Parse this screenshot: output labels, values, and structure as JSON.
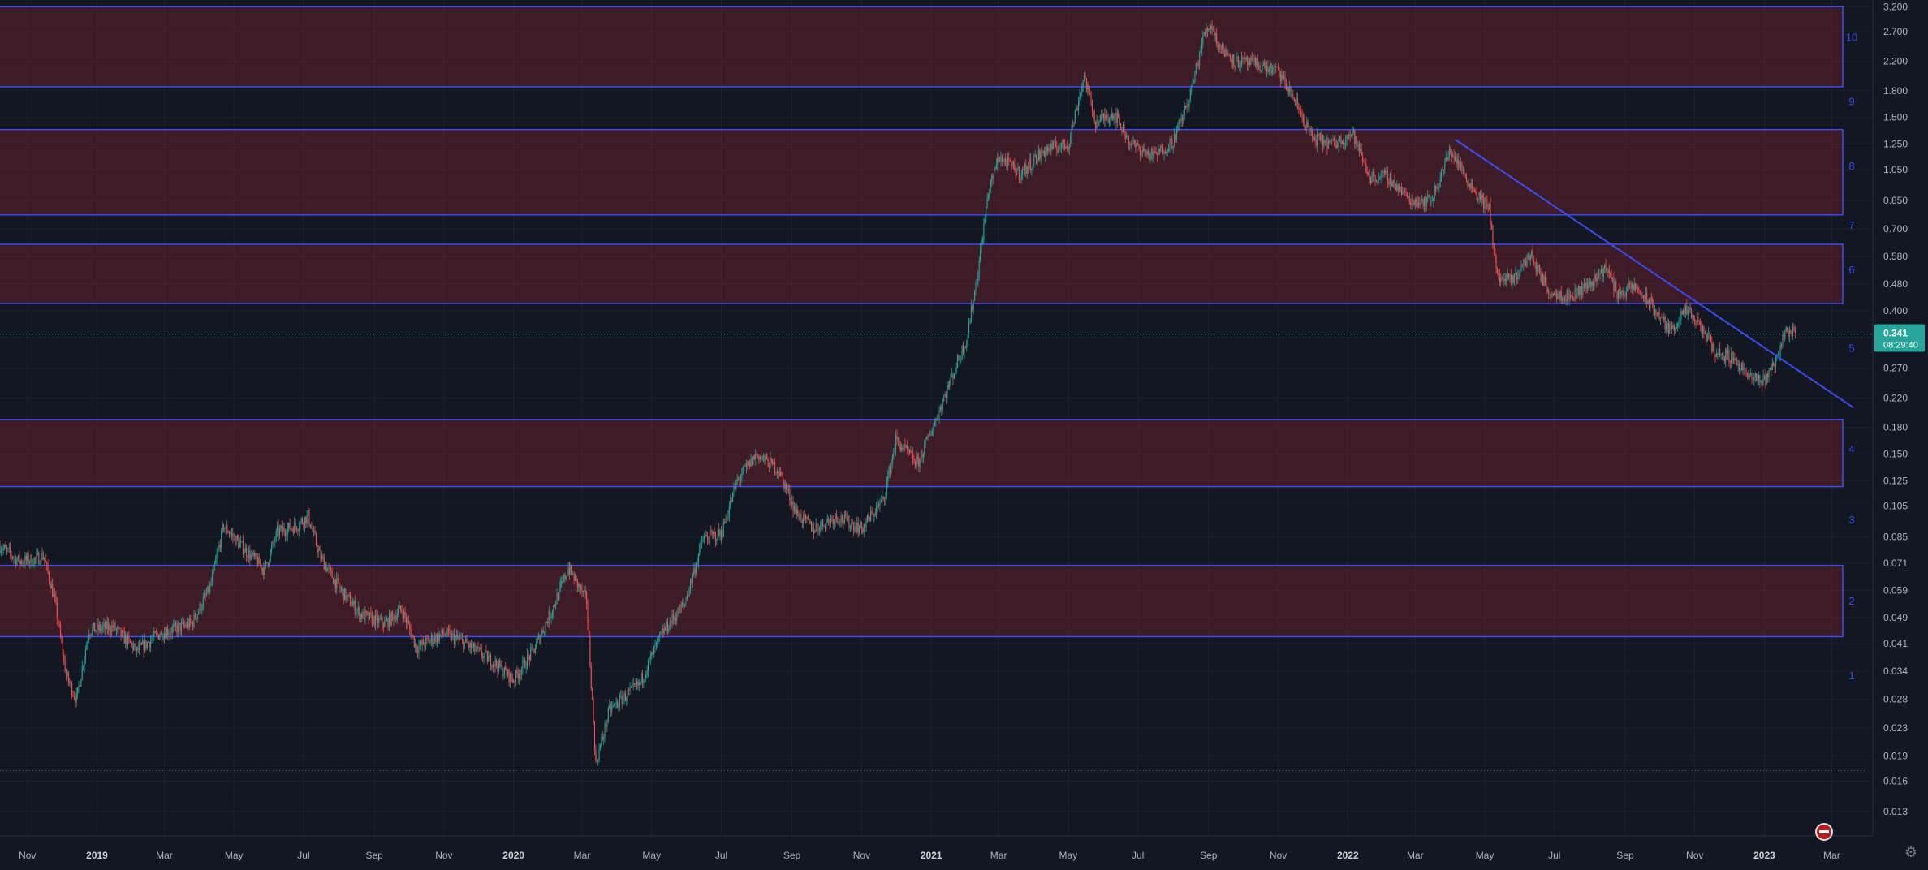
{
  "chart_data": {
    "type": "candlestick",
    "y_scale": "log",
    "y_range": [
      0.011,
      3.35
    ],
    "x_range": [
      "2018-10-08",
      "2023-04-01"
    ],
    "price_ticks": [
      "3.200",
      "2.700",
      "2.200",
      "1.800",
      "1.500",
      "1.250",
      "1.050",
      "0.850",
      "0.700",
      "0.580",
      "0.480",
      "0.400",
      "0.341",
      "0.270",
      "0.220",
      "0.180",
      "0.150",
      "0.125",
      "0.105",
      "0.085",
      "0.071",
      "0.059",
      "0.049",
      "0.041",
      "0.034",
      "0.028",
      "0.023",
      "0.019",
      "0.016",
      "0.013"
    ],
    "time_labels": [
      {
        "date": "2018-11-01",
        "label": "Nov",
        "bold": false
      },
      {
        "date": "2019-01-01",
        "label": "2019",
        "bold": true
      },
      {
        "date": "2019-03-01",
        "label": "Mar",
        "bold": false
      },
      {
        "date": "2019-05-01",
        "label": "May",
        "bold": false
      },
      {
        "date": "2019-07-01",
        "label": "Jul",
        "bold": false
      },
      {
        "date": "2019-09-01",
        "label": "Sep",
        "bold": false
      },
      {
        "date": "2019-11-01",
        "label": "Nov",
        "bold": false
      },
      {
        "date": "2020-01-01",
        "label": "2020",
        "bold": true
      },
      {
        "date": "2020-03-01",
        "label": "Mar",
        "bold": false
      },
      {
        "date": "2020-05-01",
        "label": "May",
        "bold": false
      },
      {
        "date": "2020-07-01",
        "label": "Jul",
        "bold": false
      },
      {
        "date": "2020-09-01",
        "label": "Sep",
        "bold": false
      },
      {
        "date": "2020-11-01",
        "label": "Nov",
        "bold": false
      },
      {
        "date": "2021-01-01",
        "label": "2021",
        "bold": true
      },
      {
        "date": "2021-03-01",
        "label": "Mar",
        "bold": false
      },
      {
        "date": "2021-05-01",
        "label": "May",
        "bold": false
      },
      {
        "date": "2021-07-01",
        "label": "Jul",
        "bold": false
      },
      {
        "date": "2021-09-01",
        "label": "Sep",
        "bold": false
      },
      {
        "date": "2021-11-01",
        "label": "Nov",
        "bold": false
      },
      {
        "date": "2022-01-01",
        "label": "2022",
        "bold": true
      },
      {
        "date": "2022-03-01",
        "label": "Mar",
        "bold": false
      },
      {
        "date": "2022-05-01",
        "label": "May",
        "bold": false
      },
      {
        "date": "2022-07-01",
        "label": "Jul",
        "bold": false
      },
      {
        "date": "2022-09-01",
        "label": "Sep",
        "bold": false
      },
      {
        "date": "2022-11-01",
        "label": "Nov",
        "bold": false
      },
      {
        "date": "2023-01-01",
        "label": "2023",
        "bold": true
      },
      {
        "date": "2023-03-01",
        "label": "Mar",
        "bold": false
      }
    ],
    "zones": [
      {
        "low": 1.85,
        "high": 3.2
      },
      {
        "low": 0.77,
        "high": 1.38
      },
      {
        "low": 0.42,
        "high": 0.63
      },
      {
        "low": 0.12,
        "high": 0.19
      },
      {
        "low": 0.043,
        "high": 0.07
      }
    ],
    "zone_labels": [
      {
        "label": "10",
        "price": 2.6
      },
      {
        "label": "9",
        "price": 1.68
      },
      {
        "label": "8",
        "price": 1.08
      },
      {
        "label": "7",
        "price": 0.72
      },
      {
        "label": "6",
        "price": 0.53
      },
      {
        "label": "5",
        "price": 0.31
      },
      {
        "label": "4",
        "price": 0.156
      },
      {
        "label": "3",
        "price": 0.096
      },
      {
        "label": "2",
        "price": 0.055
      },
      {
        "label": "1",
        "price": 0.033
      }
    ],
    "trendline": {
      "start": [
        "2022-04-05",
        1.29
      ],
      "end": [
        "2023-03-20",
        0.206
      ]
    },
    "low_line_price": 0.0172,
    "last_price": 0.341,
    "price_label": "0.341",
    "countdown": "08:29:40",
    "path": [
      [
        "2018-10-08",
        0.08
      ],
      [
        "2018-10-25",
        0.072
      ],
      [
        "2018-11-08",
        0.073
      ],
      [
        "2018-11-15",
        0.075
      ],
      [
        "2018-11-25",
        0.055
      ],
      [
        "2018-12-05",
        0.033
      ],
      [
        "2018-12-14",
        0.028
      ],
      [
        "2018-12-25",
        0.045
      ],
      [
        "2019-01-15",
        0.046
      ],
      [
        "2019-02-05",
        0.039
      ],
      [
        "2019-02-25",
        0.044
      ],
      [
        "2019-03-25",
        0.047
      ],
      [
        "2019-04-10",
        0.06
      ],
      [
        "2019-04-22",
        0.092
      ],
      [
        "2019-05-10",
        0.078
      ],
      [
        "2019-05-28",
        0.068
      ],
      [
        "2019-06-08",
        0.088
      ],
      [
        "2019-06-25",
        0.092
      ],
      [
        "2019-07-05",
        0.098
      ],
      [
        "2019-07-15",
        0.075
      ],
      [
        "2019-08-01",
        0.06
      ],
      [
        "2019-08-20",
        0.05
      ],
      [
        "2019-09-10",
        0.047
      ],
      [
        "2019-09-25",
        0.052
      ],
      [
        "2019-10-08",
        0.04
      ],
      [
        "2019-11-01",
        0.044
      ],
      [
        "2019-11-20",
        0.041
      ],
      [
        "2019-12-15",
        0.036
      ],
      [
        "2020-01-01",
        0.032
      ],
      [
        "2020-01-20",
        0.04
      ],
      [
        "2020-02-05",
        0.053
      ],
      [
        "2020-02-18",
        0.069
      ],
      [
        "2020-03-05",
        0.055
      ],
      [
        "2020-03-13",
        0.018
      ],
      [
        "2020-03-25",
        0.026
      ],
      [
        "2020-04-20",
        0.031
      ],
      [
        "2020-05-10",
        0.044
      ],
      [
        "2020-05-30",
        0.054
      ],
      [
        "2020-06-15",
        0.084
      ],
      [
        "2020-07-01",
        0.087
      ],
      [
        "2020-07-15",
        0.125
      ],
      [
        "2020-08-01",
        0.15
      ],
      [
        "2020-08-20",
        0.135
      ],
      [
        "2020-09-05",
        0.1
      ],
      [
        "2020-09-20",
        0.09
      ],
      [
        "2020-10-10",
        0.098
      ],
      [
        "2020-11-01",
        0.09
      ],
      [
        "2020-11-20",
        0.11
      ],
      [
        "2020-12-01",
        0.165
      ],
      [
        "2020-12-20",
        0.14
      ],
      [
        "2021-01-05",
        0.19
      ],
      [
        "2021-01-20",
        0.26
      ],
      [
        "2021-02-01",
        0.33
      ],
      [
        "2021-02-10",
        0.5
      ],
      [
        "2021-02-20",
        0.9
      ],
      [
        "2021-03-01",
        1.15
      ],
      [
        "2021-03-20",
        1.02
      ],
      [
        "2021-04-10",
        1.2
      ],
      [
        "2021-05-01",
        1.25
      ],
      [
        "2021-05-15",
        2.0
      ],
      [
        "2021-05-25",
        1.45
      ],
      [
        "2021-06-10",
        1.55
      ],
      [
        "2021-06-25",
        1.25
      ],
      [
        "2021-07-15",
        1.15
      ],
      [
        "2021-08-01",
        1.28
      ],
      [
        "2021-08-15",
        1.7
      ],
      [
        "2021-08-28",
        2.65
      ],
      [
        "2021-09-03",
        2.85
      ],
      [
        "2021-09-10",
        2.45
      ],
      [
        "2021-09-25",
        2.2
      ],
      [
        "2021-10-15",
        2.15
      ],
      [
        "2021-11-01",
        2.05
      ],
      [
        "2021-11-15",
        1.7
      ],
      [
        "2021-12-01",
        1.3
      ],
      [
        "2021-12-20",
        1.25
      ],
      [
        "2022-01-05",
        1.35
      ],
      [
        "2022-01-20",
        1.0
      ],
      [
        "2022-02-05",
        1.0
      ],
      [
        "2022-02-25",
        0.85
      ],
      [
        "2022-03-15",
        0.85
      ],
      [
        "2022-04-01",
        1.2
      ],
      [
        "2022-04-20",
        0.93
      ],
      [
        "2022-05-05",
        0.8
      ],
      [
        "2022-05-12",
        0.5
      ],
      [
        "2022-05-25",
        0.49
      ],
      [
        "2022-06-10",
        0.59
      ],
      [
        "2022-06-25",
        0.46
      ],
      [
        "2022-07-15",
        0.44
      ],
      [
        "2022-08-01",
        0.48
      ],
      [
        "2022-08-15",
        0.54
      ],
      [
        "2022-08-25",
        0.45
      ],
      [
        "2022-09-10",
        0.47
      ],
      [
        "2022-09-25",
        0.41
      ],
      [
        "2022-10-10",
        0.35
      ],
      [
        "2022-10-25",
        0.4
      ],
      [
        "2022-11-08",
        0.35
      ],
      [
        "2022-11-20",
        0.3
      ],
      [
        "2022-12-05",
        0.29
      ],
      [
        "2022-12-20",
        0.25
      ],
      [
        "2022-12-31",
        0.248
      ],
      [
        "2023-01-10",
        0.28
      ],
      [
        "2023-01-20",
        0.35
      ],
      [
        "2023-01-28",
        0.341
      ]
    ]
  }
}
